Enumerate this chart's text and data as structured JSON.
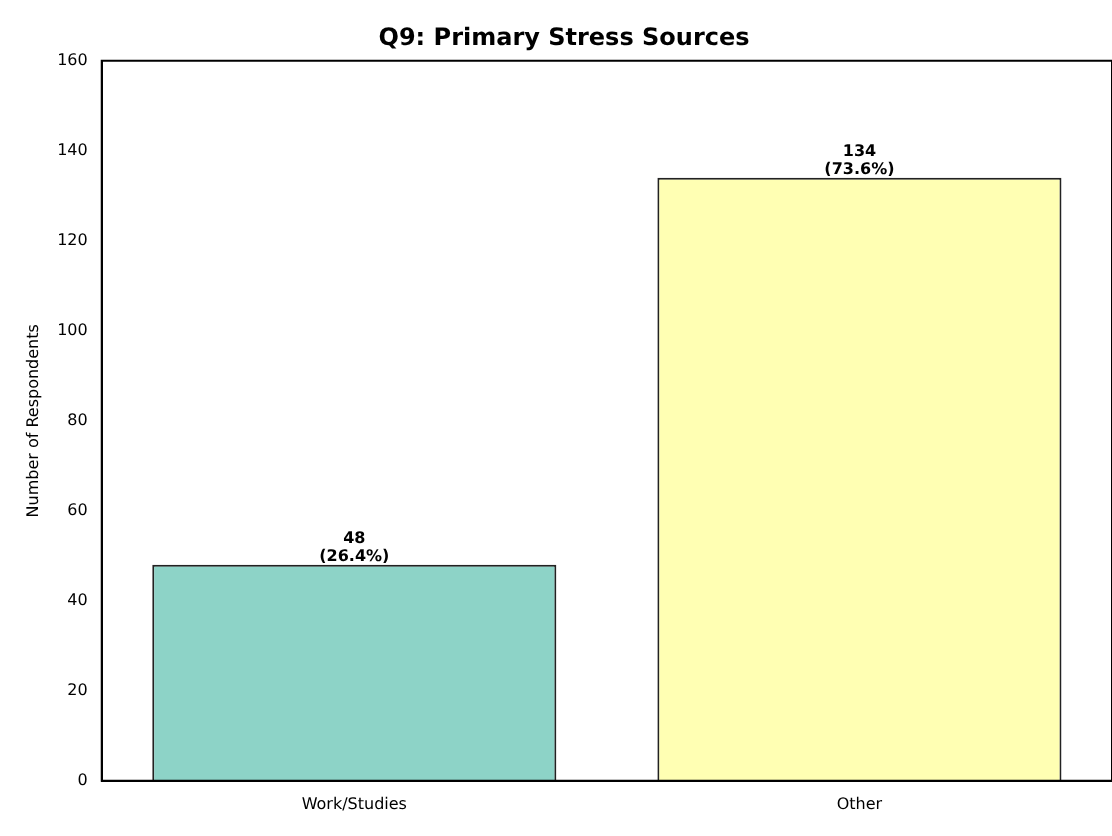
{
  "chart_data": {
    "type": "bar",
    "title": "Q9: Primary Stress Sources",
    "ylabel": "Number of Respondents",
    "categories": [
      "Work/Studies",
      "Other"
    ],
    "values": [
      48,
      134
    ],
    "colors": [
      "#8dd3c7",
      "#ffffb3"
    ],
    "value_labels": [
      "48\n(26.4%)",
      "134\n(73.6%)"
    ],
    "ylim": [
      0,
      160
    ],
    "yticks": [
      0,
      20,
      40,
      60,
      80,
      100,
      120,
      140,
      160
    ],
    "grid": false,
    "legend": false
  }
}
